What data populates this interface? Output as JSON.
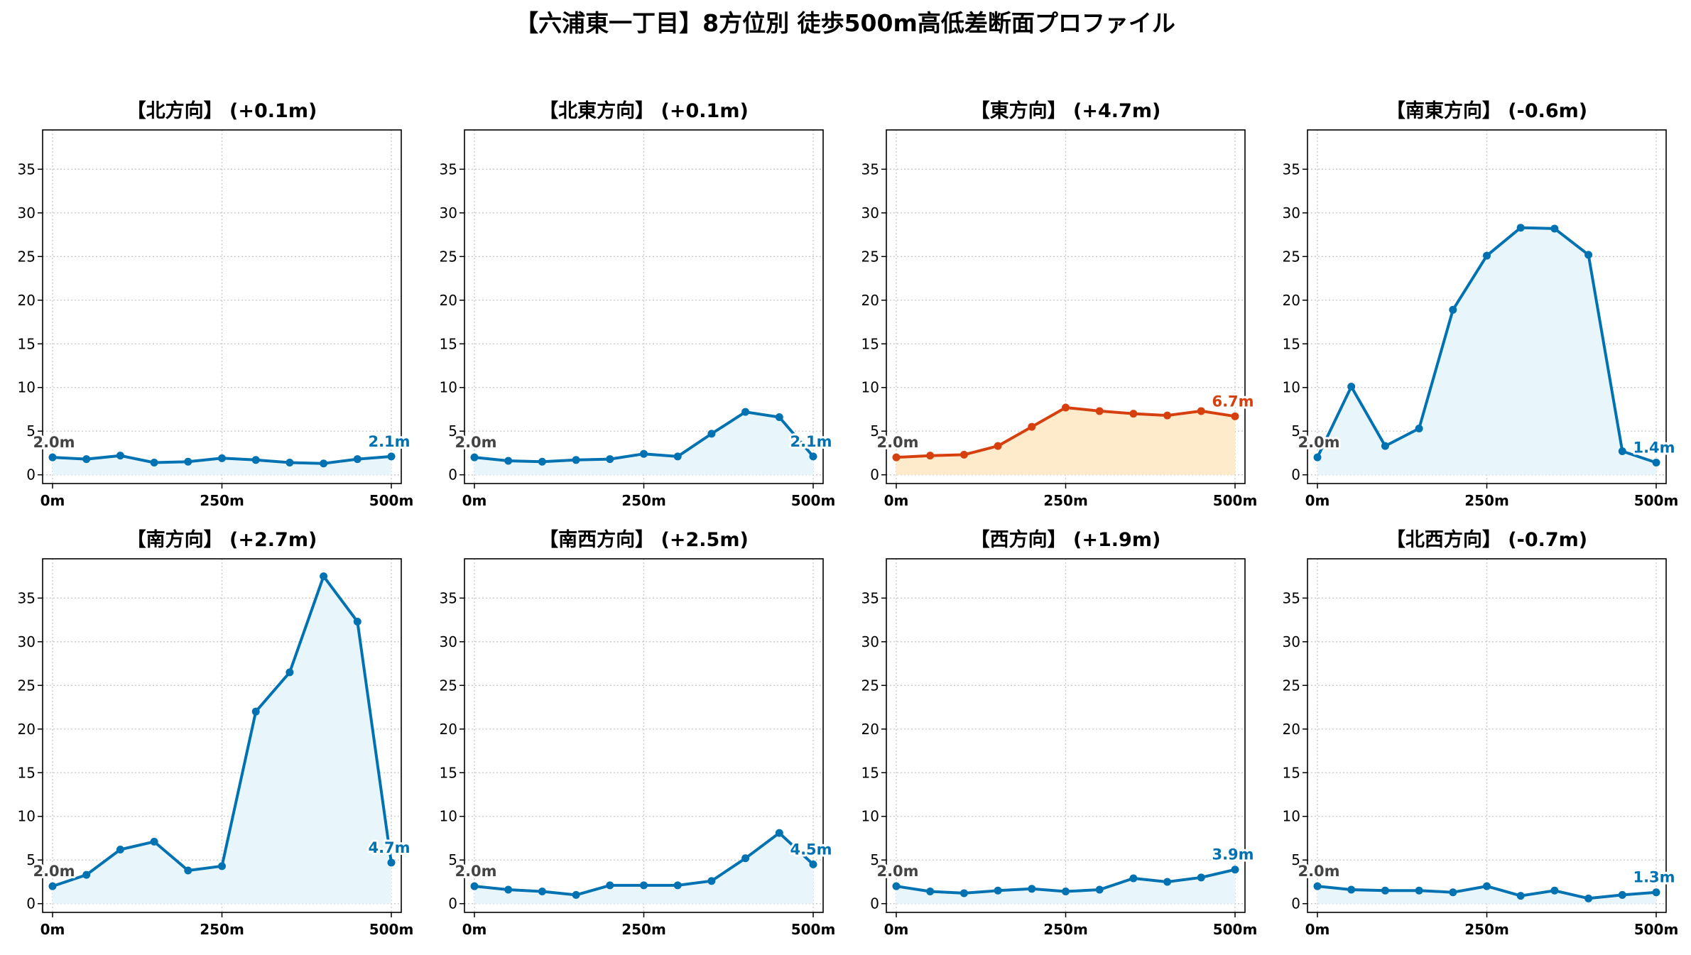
{
  "title": "【六浦東一丁目】8方位別 徒歩500m高低差断面プロファイル",
  "colors": {
    "normal_line": "#0072b2",
    "normal_fill": "#e8f5fb",
    "highlight_line": "#d6400f",
    "highlight_fill": "#fdebcc",
    "start_label": "#444444"
  },
  "chart_data": [
    {
      "type": "area",
      "title": "【北方向】 (+0.1m)",
      "x": [
        0,
        50,
        100,
        150,
        200,
        250,
        300,
        350,
        400,
        450,
        500
      ],
      "values": [
        2.0,
        1.8,
        2.2,
        1.4,
        1.5,
        1.9,
        1.7,
        1.4,
        1.3,
        1.8,
        2.1
      ],
      "ylim": [
        -1,
        39.5
      ],
      "yticks": [
        "0",
        "5",
        "10",
        "15",
        "20",
        "25",
        "30",
        "35"
      ],
      "xticks": [
        "0m",
        "250m",
        "500m"
      ],
      "start_label": "2.0m",
      "end_label": "2.1m",
      "highlight": false,
      "grid": true
    },
    {
      "type": "area",
      "title": "【北東方向】 (+0.1m)",
      "x": [
        0,
        50,
        100,
        150,
        200,
        250,
        300,
        350,
        400,
        450,
        500
      ],
      "values": [
        2.0,
        1.6,
        1.5,
        1.7,
        1.8,
        2.4,
        2.1,
        4.7,
        7.2,
        6.6,
        2.1
      ],
      "ylim": [
        -1,
        39.5
      ],
      "yticks": [
        "0",
        "5",
        "10",
        "15",
        "20",
        "25",
        "30",
        "35"
      ],
      "xticks": [
        "0m",
        "250m",
        "500m"
      ],
      "start_label": "2.0m",
      "end_label": "2.1m",
      "highlight": false,
      "grid": true
    },
    {
      "type": "area",
      "title": "【東方向】 (+4.7m)",
      "x": [
        0,
        50,
        100,
        150,
        200,
        250,
        300,
        350,
        400,
        450,
        500
      ],
      "values": [
        2.0,
        2.2,
        2.3,
        3.3,
        5.5,
        7.7,
        7.3,
        7.0,
        6.8,
        7.3,
        6.7
      ],
      "ylim": [
        -1,
        39.5
      ],
      "yticks": [
        "0",
        "5",
        "10",
        "15",
        "20",
        "25",
        "30",
        "35"
      ],
      "xticks": [
        "0m",
        "250m",
        "500m"
      ],
      "start_label": "2.0m",
      "end_label": "6.7m",
      "highlight": true,
      "grid": true
    },
    {
      "type": "area",
      "title": "【南東方向】 (-0.6m)",
      "x": [
        0,
        50,
        100,
        150,
        200,
        250,
        300,
        350,
        400,
        450,
        500
      ],
      "values": [
        2.0,
        10.1,
        3.3,
        5.3,
        18.9,
        25.1,
        28.3,
        28.2,
        25.2,
        2.7,
        1.4
      ],
      "ylim": [
        -1,
        39.5
      ],
      "yticks": [
        "0",
        "5",
        "10",
        "15",
        "20",
        "25",
        "30",
        "35"
      ],
      "xticks": [
        "0m",
        "250m",
        "500m"
      ],
      "start_label": "2.0m",
      "end_label": "1.4m",
      "highlight": false,
      "grid": true
    },
    {
      "type": "area",
      "title": "【南方向】 (+2.7m)",
      "x": [
        0,
        50,
        100,
        150,
        200,
        250,
        300,
        350,
        400,
        450,
        500
      ],
      "values": [
        2.0,
        3.3,
        6.2,
        7.1,
        3.8,
        4.3,
        22.0,
        26.5,
        37.5,
        32.3,
        4.7
      ],
      "ylim": [
        -1,
        39.5
      ],
      "yticks": [
        "0",
        "5",
        "10",
        "15",
        "20",
        "25",
        "30",
        "35"
      ],
      "xticks": [
        "0m",
        "250m",
        "500m"
      ],
      "start_label": "2.0m",
      "end_label": "4.7m",
      "highlight": false,
      "grid": true
    },
    {
      "type": "area",
      "title": "【南西方向】 (+2.5m)",
      "x": [
        0,
        50,
        100,
        150,
        200,
        250,
        300,
        350,
        400,
        450,
        500
      ],
      "values": [
        2.0,
        1.6,
        1.4,
        1.0,
        2.1,
        2.1,
        2.1,
        2.6,
        5.2,
        8.1,
        4.5
      ],
      "ylim": [
        -1,
        39.5
      ],
      "yticks": [
        "0",
        "5",
        "10",
        "15",
        "20",
        "25",
        "30",
        "35"
      ],
      "xticks": [
        "0m",
        "250m",
        "500m"
      ],
      "start_label": "2.0m",
      "end_label": "4.5m",
      "highlight": false,
      "grid": true
    },
    {
      "type": "area",
      "title": "【西方向】 (+1.9m)",
      "x": [
        0,
        50,
        100,
        150,
        200,
        250,
        300,
        350,
        400,
        450,
        500
      ],
      "values": [
        2.0,
        1.4,
        1.2,
        1.5,
        1.7,
        1.4,
        1.6,
        2.9,
        2.5,
        3.0,
        3.9
      ],
      "ylim": [
        -1,
        39.5
      ],
      "yticks": [
        "0",
        "5",
        "10",
        "15",
        "20",
        "25",
        "30",
        "35"
      ],
      "xticks": [
        "0m",
        "250m",
        "500m"
      ],
      "start_label": "2.0m",
      "end_label": "3.9m",
      "highlight": false,
      "grid": true
    },
    {
      "type": "area",
      "title": "【北西方向】 (-0.7m)",
      "x": [
        0,
        50,
        100,
        150,
        200,
        250,
        300,
        350,
        400,
        450,
        500
      ],
      "values": [
        2.0,
        1.6,
        1.5,
        1.5,
        1.3,
        2.0,
        0.9,
        1.5,
        0.6,
        1.0,
        1.3
      ],
      "ylim": [
        -1,
        39.5
      ],
      "yticks": [
        "0",
        "5",
        "10",
        "15",
        "20",
        "25",
        "30",
        "35"
      ],
      "xticks": [
        "0m",
        "250m",
        "500m"
      ],
      "start_label": "2.0m",
      "end_label": "1.3m",
      "highlight": false,
      "grid": true
    }
  ]
}
